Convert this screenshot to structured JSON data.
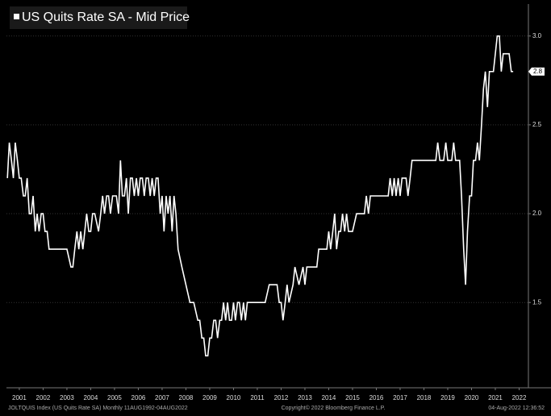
{
  "chart_data": {
    "type": "line",
    "title": "US Quits Rate SA - Mid Price",
    "x": [
      2001.0,
      2001.08,
      2001.17,
      2001.25,
      2001.33,
      2001.42,
      2001.5,
      2001.58,
      2001.67,
      2001.75,
      2001.83,
      2001.92,
      2002.0,
      2002.08,
      2002.17,
      2002.25,
      2002.33,
      2002.42,
      2002.5,
      2002.58,
      2002.67,
      2002.75,
      2002.83,
      2003.0,
      2003.17,
      2003.25,
      2003.42,
      2003.5,
      2003.67,
      2003.75,
      2003.83,
      2003.92,
      2004.0,
      2004.08,
      2004.17,
      2004.25,
      2004.33,
      2004.42,
      2004.5,
      2004.58,
      2004.67,
      2004.83,
      2004.92,
      2005.0,
      2005.08,
      2005.17,
      2005.25,
      2005.33,
      2005.42,
      2005.5,
      2005.58,
      2005.67,
      2005.75,
      2005.83,
      2005.92,
      2006.0,
      2006.08,
      2006.17,
      2006.25,
      2006.33,
      2006.42,
      2006.5,
      2006.58,
      2006.67,
      2006.75,
      2006.83,
      2006.92,
      2007.0,
      2007.08,
      2007.17,
      2007.25,
      2007.33,
      2007.42,
      2007.5,
      2007.58,
      2007.67,
      2007.75,
      2007.83,
      2007.92,
      2008.0,
      2008.08,
      2008.17,
      2008.33,
      2008.5,
      2008.67,
      2008.83,
      2009.0,
      2009.08,
      2009.17,
      2009.25,
      2009.33,
      2009.42,
      2009.5,
      2009.58,
      2009.67,
      2009.75,
      2009.83,
      2009.92,
      2010.0,
      2010.08,
      2010.17,
      2010.25,
      2010.33,
      2010.42,
      2010.5,
      2010.58,
      2010.67,
      2010.75,
      2010.83,
      2010.92,
      2011.0,
      2011.08,
      2011.17,
      2011.33,
      2011.5,
      2011.67,
      2011.83,
      2012.0,
      2012.17,
      2012.33,
      2012.42,
      2012.5,
      2012.58,
      2012.67,
      2012.75,
      2012.83,
      2013.0,
      2013.08,
      2013.25,
      2013.42,
      2013.5,
      2013.58,
      2013.75,
      2013.92,
      2014.0,
      2014.08,
      2014.25,
      2014.42,
      2014.5,
      2014.58,
      2014.67,
      2014.75,
      2014.83,
      2014.92,
      2015.0,
      2015.08,
      2015.17,
      2015.25,
      2015.33,
      2015.5,
      2015.67,
      2015.75,
      2015.83,
      2016.0,
      2016.08,
      2016.17,
      2016.25,
      2016.33,
      2016.5,
      2016.67,
      2016.83,
      2017.0,
      2017.08,
      2017.17,
      2017.25,
      2017.33,
      2017.42,
      2017.5,
      2017.58,
      2017.75,
      2017.83,
      2017.92,
      2018.0,
      2018.25,
      2018.5,
      2018.75,
      2019.0,
      2019.08,
      2019.17,
      2019.33,
      2019.42,
      2019.5,
      2019.67,
      2019.75,
      2019.83,
      2020.0,
      2020.08,
      2020.17,
      2020.25,
      2020.33,
      2020.42,
      2020.5,
      2020.58,
      2020.67,
      2020.75,
      2020.83,
      2020.92,
      2021.0,
      2021.08,
      2021.17,
      2021.25,
      2021.33,
      2021.42,
      2021.5,
      2021.58,
      2021.67,
      2021.75,
      2021.83,
      2022.0,
      2022.08,
      2022.17,
      2022.25
    ],
    "series": [
      {
        "name": "US Quits Rate SA - Mid Price",
        "color": "#ffffff",
        "values": [
          2.2,
          2.4,
          2.3,
          2.2,
          2.4,
          2.3,
          2.2,
          2.2,
          2.1,
          2.1,
          2.2,
          2.0,
          2.0,
          2.1,
          1.9,
          2.0,
          1.9,
          2.0,
          2.0,
          1.9,
          1.9,
          1.8,
          1.8,
          1.8,
          1.8,
          1.8,
          1.8,
          1.8,
          1.7,
          1.7,
          1.8,
          1.9,
          1.8,
          1.9,
          1.8,
          1.9,
          2.0,
          1.9,
          1.9,
          2.0,
          2.0,
          1.9,
          2.0,
          2.1,
          2.0,
          2.1,
          2.1,
          2.0,
          2.1,
          2.1,
          2.1,
          2.0,
          2.3,
          2.1,
          2.1,
          2.2,
          2.0,
          2.2,
          2.2,
          2.1,
          2.2,
          2.1,
          2.2,
          2.2,
          2.1,
          2.2,
          2.2,
          2.1,
          2.2,
          2.1,
          2.2,
          2.2,
          2.0,
          2.1,
          1.9,
          2.1,
          2.0,
          2.1,
          1.9,
          2.1,
          2.0,
          1.8,
          1.7,
          1.6,
          1.5,
          1.5,
          1.4,
          1.4,
          1.3,
          1.3,
          1.2,
          1.2,
          1.3,
          1.3,
          1.4,
          1.4,
          1.3,
          1.4,
          1.4,
          1.5,
          1.4,
          1.5,
          1.4,
          1.4,
          1.5,
          1.4,
          1.5,
          1.5,
          1.4,
          1.5,
          1.4,
          1.5,
          1.5,
          1.5,
          1.5,
          1.5,
          1.5,
          1.6,
          1.6,
          1.6,
          1.5,
          1.5,
          1.4,
          1.5,
          1.6,
          1.5,
          1.6,
          1.7,
          1.6,
          1.7,
          1.6,
          1.7,
          1.7,
          1.7,
          1.7,
          1.8,
          1.8,
          1.8,
          1.9,
          1.8,
          1.9,
          2.0,
          1.8,
          1.9,
          1.9,
          2.0,
          1.9,
          2.0,
          1.9,
          1.9,
          2.0,
          2.0,
          2.0,
          2.0,
          2.1,
          2.0,
          2.1,
          2.1,
          2.1,
          2.1,
          2.1,
          2.1,
          2.2,
          2.1,
          2.2,
          2.1,
          2.2,
          2.1,
          2.2,
          2.2,
          2.1,
          2.2,
          2.3,
          2.3,
          2.3,
          2.3,
          2.3,
          2.4,
          2.3,
          2.3,
          2.4,
          2.3,
          2.3,
          2.4,
          2.3,
          2.3,
          2.1,
          1.8,
          1.6,
          1.9,
          2.1,
          2.1,
          2.3,
          2.3,
          2.4,
          2.3,
          2.5,
          2.7,
          2.8,
          2.6,
          2.8,
          2.8,
          2.8,
          2.9,
          3.0,
          3.0,
          2.8,
          2.9,
          2.9,
          2.9,
          2.8,
          2.8
        ]
      }
    ],
    "xlim": [
      2000.96,
      2022.89
    ],
    "xticks": [
      {
        "value": 2001.5,
        "label": "2001"
      },
      {
        "value": 2002.5,
        "label": "2002"
      },
      {
        "value": 2003.5,
        "label": "2003"
      },
      {
        "value": 2004.5,
        "label": "2004"
      },
      {
        "value": 2005.5,
        "label": "2005"
      },
      {
        "value": 2006.5,
        "label": "2006"
      },
      {
        "value": 2007.5,
        "label": "2007"
      },
      {
        "value": 2008.5,
        "label": "2008"
      },
      {
        "value": 2009.5,
        "label": "2009"
      },
      {
        "value": 2010.5,
        "label": "2010"
      },
      {
        "value": 2011.5,
        "label": "2011"
      },
      {
        "value": 2012.5,
        "label": "2012"
      },
      {
        "value": 2013.5,
        "label": "2013"
      },
      {
        "value": 2014.5,
        "label": "2014"
      },
      {
        "value": 2015.5,
        "label": "2015"
      },
      {
        "value": 2016.5,
        "label": "2016"
      },
      {
        "value": 2017.5,
        "label": "2017"
      },
      {
        "value": 2018.5,
        "label": "2018"
      },
      {
        "value": 2019.5,
        "label": "2019"
      },
      {
        "value": 2020.5,
        "label": "2020"
      },
      {
        "value": 2021.5,
        "label": "2021"
      },
      {
        "value": 2022.5,
        "label": "2022"
      }
    ],
    "ylim": [
      1.02,
      3.18
    ],
    "yticks": [
      1.5,
      {
        "value": 2,
        "label": "2.0"
      },
      2.5,
      {
        "value": 3,
        "label": "3.0"
      }
    ],
    "grid": true,
    "footer": {
      "left": "JOLTQUIS Index (US Quits Rate SA) Monthly 11AUG1992-04AUG2022",
      "center": "Copyright© 2022 Bloomberg Finance L.P.",
      "right": "04-Aug-2022 12:36:52"
    }
  }
}
